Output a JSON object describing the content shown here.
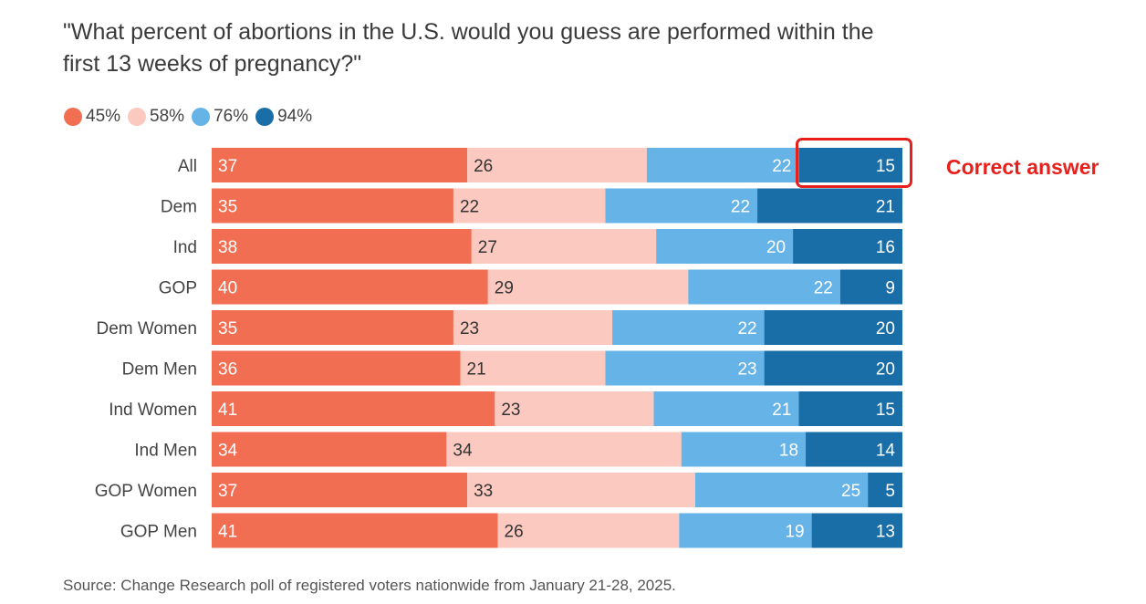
{
  "title": "\"What percent of abortions in the U.S. would you guess are performed within the first 13 weeks of pregnancy?\"",
  "source": "Source: Change Research poll of registered voters nationwide from January 21-28, 2025.",
  "callout": {
    "label": "Correct answer",
    "target_row": "All",
    "target_series": "94%",
    "color": "#e8201c"
  },
  "colors": {
    "45%": "#f26e52",
    "58%": "#fbc9bf",
    "76%": "#66b3e8",
    "94%": "#1a6ea8"
  },
  "chart_data": {
    "type": "bar",
    "orientation": "horizontal",
    "stacked": true,
    "title": "\"What percent of abortions in the U.S. would you guess are performed within the first 13 weeks of pregnancy?\"",
    "legend_position": "top-left",
    "categories": [
      "All",
      "Dem",
      "Ind",
      "GOP",
      "Dem Women",
      "Dem Men",
      "Ind Women",
      "Ind Men",
      "GOP Women",
      "GOP Men"
    ],
    "series": [
      {
        "name": "45%",
        "values": [
          37,
          35,
          38,
          40,
          35,
          36,
          41,
          34,
          37,
          41
        ],
        "color": "#f26e52",
        "label_color": "#ffffff",
        "label_align": "start"
      },
      {
        "name": "58%",
        "values": [
          26,
          22,
          27,
          29,
          23,
          21,
          23,
          34,
          33,
          26
        ],
        "color": "#fbc9bf",
        "label_color": "#333333",
        "label_align": "start"
      },
      {
        "name": "76%",
        "values": [
          22,
          22,
          20,
          22,
          22,
          23,
          21,
          18,
          25,
          19
        ],
        "color": "#66b3e8",
        "label_color": "#ffffff",
        "label_align": "end"
      },
      {
        "name": "94%",
        "values": [
          15,
          21,
          16,
          9,
          20,
          20,
          15,
          14,
          5,
          13
        ],
        "color": "#1a6ea8",
        "label_color": "#ffffff",
        "label_align": "end"
      }
    ],
    "grid": false
  }
}
